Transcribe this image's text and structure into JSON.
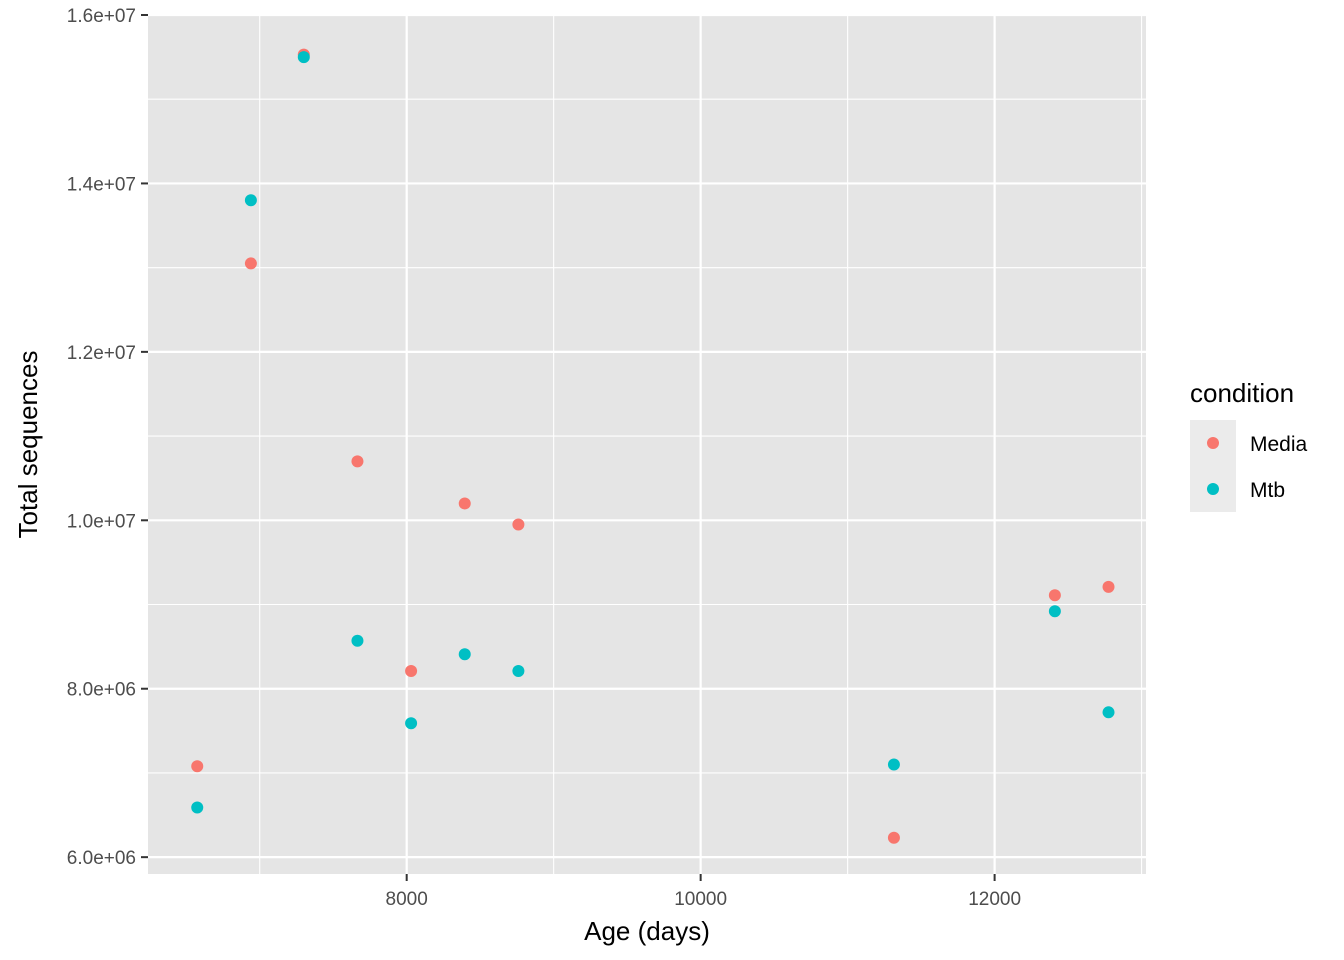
{
  "chart_data": {
    "type": "scatter",
    "title": "",
    "xlabel": "Age (days)",
    "ylabel": "Total sequences",
    "xlim": [
      6240,
      13030
    ],
    "ylim": [
      5800000,
      16000000
    ],
    "x_ticks": [
      8000,
      10000,
      12000
    ],
    "x_tick_labels": [
      "8000",
      "10000",
      "12000"
    ],
    "y_ticks": [
      6000000,
      8000000,
      10000000,
      12000000,
      14000000,
      16000000
    ],
    "y_tick_labels": [
      "6.0e+06",
      "8.0e+06",
      "1.0e+07",
      "1.2e+07",
      "1.4e+07",
      "1.6e+07"
    ],
    "grid": true,
    "legend": {
      "title": "condition",
      "position": "right"
    },
    "series": [
      {
        "name": "Media",
        "color": "#F8766D",
        "points": [
          {
            "x": 6575,
            "y": 7080000
          },
          {
            "x": 6940,
            "y": 13050000
          },
          {
            "x": 7300,
            "y": 15530000
          },
          {
            "x": 7665,
            "y": 10700000
          },
          {
            "x": 8030,
            "y": 8210000
          },
          {
            "x": 8395,
            "y": 10200000
          },
          {
            "x": 8760,
            "y": 9950000
          },
          {
            "x": 11315,
            "y": 6230000
          },
          {
            "x": 12410,
            "y": 9110000
          },
          {
            "x": 12775,
            "y": 9210000
          }
        ]
      },
      {
        "name": "Mtb",
        "color": "#00BFC4",
        "points": [
          {
            "x": 6575,
            "y": 6590000
          },
          {
            "x": 6940,
            "y": 13800000
          },
          {
            "x": 7300,
            "y": 15500000
          },
          {
            "x": 7665,
            "y": 8570000
          },
          {
            "x": 8030,
            "y": 7590000
          },
          {
            "x": 8395,
            "y": 8410000
          },
          {
            "x": 8760,
            "y": 8210000
          },
          {
            "x": 11315,
            "y": 7100000
          },
          {
            "x": 12410,
            "y": 8920000
          },
          {
            "x": 12775,
            "y": 7720000
          }
        ]
      }
    ]
  }
}
